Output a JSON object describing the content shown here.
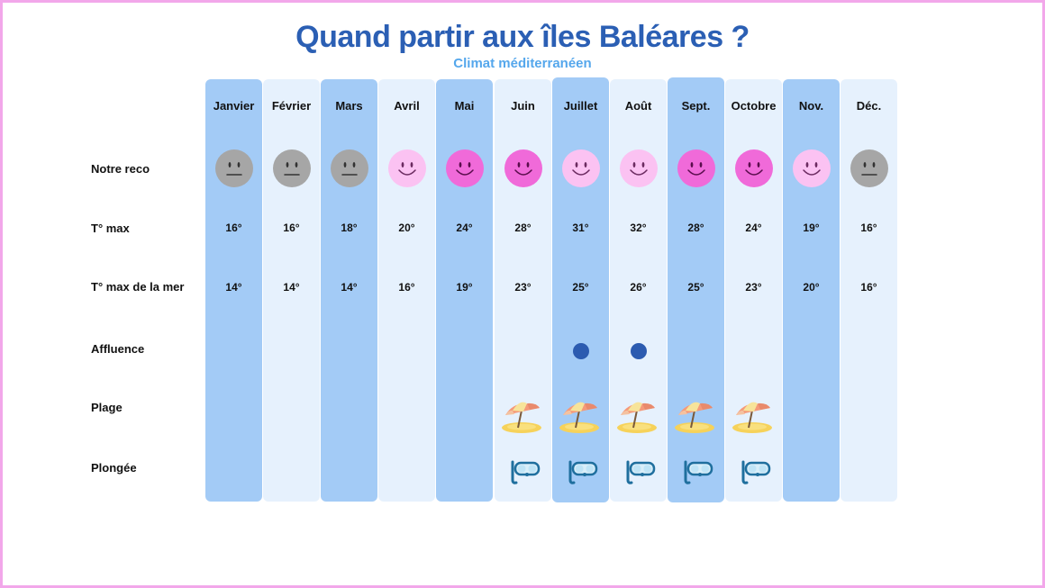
{
  "title": "Quand partir aux îles Baléares ?",
  "subtitle": "Climat méditerranéen",
  "row_labels": {
    "reco": "Notre reco",
    "tmax": "T°  max",
    "tsea": "T° max de la mer",
    "affluence": "Affluence",
    "plage": "Plage",
    "plongee": "Plongée"
  },
  "months": [
    {
      "name": "Janvier",
      "reco": "neutral",
      "tmax": "16°",
      "tsea": "14°",
      "affluence": false,
      "plage": false,
      "plongee": false
    },
    {
      "name": "Février",
      "reco": "neutral",
      "tmax": "16°",
      "tsea": "14°",
      "affluence": false,
      "plage": false,
      "plongee": false
    },
    {
      "name": "Mars",
      "reco": "neutral",
      "tmax": "18°",
      "tsea": "14°",
      "affluence": false,
      "plage": false,
      "plongee": false
    },
    {
      "name": "Avril",
      "reco": "good",
      "tmax": "20°",
      "tsea": "16°",
      "affluence": false,
      "plage": false,
      "plongee": false
    },
    {
      "name": "Mai",
      "reco": "best",
      "tmax": "24°",
      "tsea": "19°",
      "affluence": false,
      "plage": false,
      "plongee": false
    },
    {
      "name": "Juin",
      "reco": "best",
      "tmax": "28°",
      "tsea": "23°",
      "affluence": false,
      "plage": true,
      "plongee": true
    },
    {
      "name": "Juillet",
      "reco": "good",
      "tmax": "31°",
      "tsea": "25°",
      "affluence": true,
      "plage": true,
      "plongee": true
    },
    {
      "name": "Août",
      "reco": "good",
      "tmax": "32°",
      "tsea": "26°",
      "affluence": true,
      "plage": true,
      "plongee": true
    },
    {
      "name": "Sept.",
      "reco": "best",
      "tmax": "28°",
      "tsea": "25°",
      "affluence": false,
      "plage": true,
      "plongee": true
    },
    {
      "name": "Octobre",
      "reco": "best",
      "tmax": "24°",
      "tsea": "23°",
      "affluence": false,
      "plage": true,
      "plongee": true
    },
    {
      "name": "Nov.",
      "reco": "good",
      "tmax": "19°",
      "tsea": "20°",
      "affluence": false,
      "plage": false,
      "plongee": false
    },
    {
      "name": "Déc.",
      "reco": "neutral",
      "tmax": "16°",
      "tsea": "16°",
      "affluence": false,
      "plage": false,
      "plongee": false
    }
  ],
  "colors": {
    "title": "#2b5fb4",
    "subtitle": "#55a7ec",
    "column_dark": "#a3cbf6",
    "column_light": "#e6f1fd",
    "face_neutral": "#a6a6a6",
    "face_good": "#fbc2f2",
    "face_best": "#f06ad9",
    "affluence_dot": "#2c5bb0",
    "border": "#f2a7ea"
  },
  "icons": {
    "reco": "smiley-face-icon",
    "affluence": "crowd-dot-icon",
    "plage": "beach-umbrella-icon",
    "plongee": "diving-mask-icon"
  }
}
